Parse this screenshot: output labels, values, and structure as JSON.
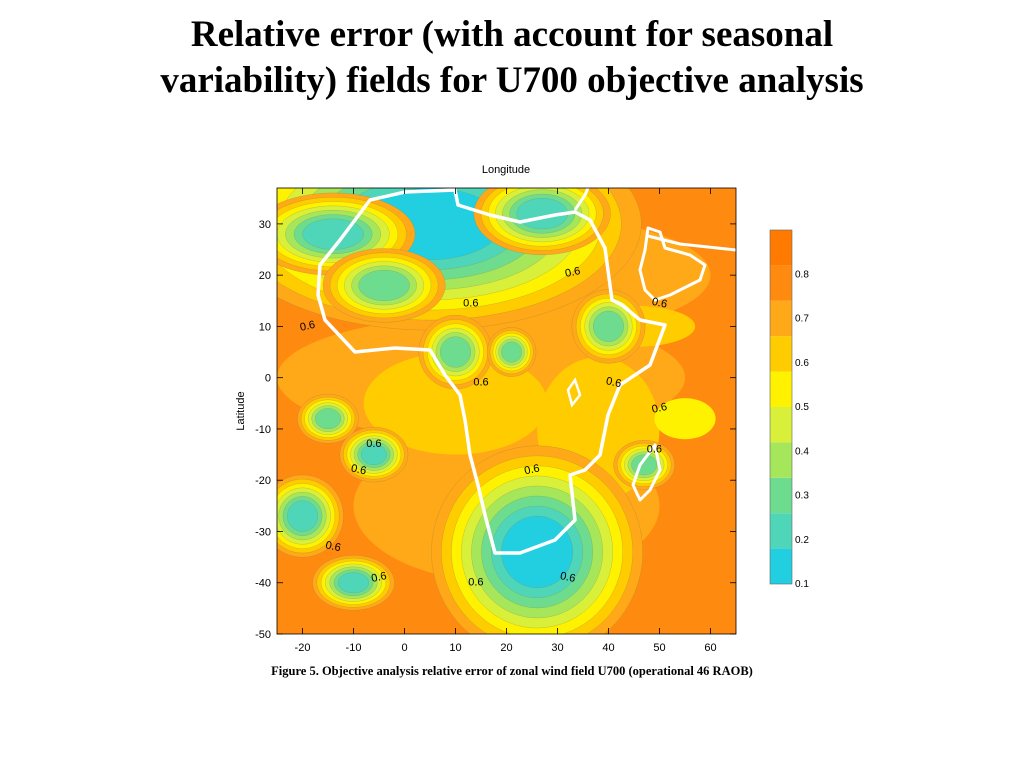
{
  "slide": {
    "title_line1": "Relative error (with account for seasonal",
    "title_line2": "variability) fields for U700 objective analysis",
    "caption": "Figure 5. Objective analysis relative error of zonal wind field U700 (operational 46 RAOB)"
  },
  "chart_data": {
    "type": "heatmap",
    "title": "",
    "xlabel": "Longitude",
    "ylabel": "Latitude",
    "xlim": [
      -25,
      65
    ],
    "ylim": [
      -50,
      37
    ],
    "xticks": [
      -20,
      -10,
      0,
      10,
      20,
      30,
      40,
      50,
      60
    ],
    "yticks": [
      30,
      20,
      10,
      0,
      -10,
      -20,
      -30,
      -40,
      -50
    ],
    "colorbar": {
      "levels": [
        0.1,
        0.2,
        0.3,
        0.4,
        0.5,
        0.6,
        0.7,
        0.8
      ],
      "labels": [
        "0.1",
        "0.2",
        "0.3",
        "0.4",
        "0.5",
        "0.6",
        "0.7",
        "0.8"
      ],
      "colors": [
        "#22cfe0",
        "#4fd6b8",
        "#6ddc8e",
        "#a6e65a",
        "#d9f03a",
        "#fff200",
        "#ffcc00",
        "#ffa818",
        "#ff8a10",
        "#ff7a00"
      ]
    },
    "contour_labels": [
      {
        "text": "0.6",
        "lon": 33,
        "lat": 20.5
      },
      {
        "text": "0.6",
        "lon": 13,
        "lat": 14.5
      },
      {
        "text": "0.6",
        "lon": 50,
        "lat": 14.5
      },
      {
        "text": "0.6",
        "lon": -19,
        "lat": 10
      },
      {
        "text": "0.6",
        "lon": 15,
        "lat": -1
      },
      {
        "text": "0.6",
        "lon": 41,
        "lat": -1
      },
      {
        "text": "0.6",
        "lon": 50,
        "lat": -6
      },
      {
        "text": "0.6",
        "lon": -6,
        "lat": -13
      },
      {
        "text": "0.6",
        "lon": -9,
        "lat": -18
      },
      {
        "text": "0.6",
        "lon": 25,
        "lat": -18
      },
      {
        "text": "0.6",
        "lon": 49,
        "lat": -14
      },
      {
        "text": "0.6",
        "lon": -14,
        "lat": -33
      },
      {
        "text": "0.6",
        "lon": -5,
        "lat": -39
      },
      {
        "text": "0.6",
        "lon": 14,
        "lat": -40
      },
      {
        "text": "0.6",
        "lon": 32,
        "lat": -39
      }
    ],
    "minima_regions": [
      {
        "lon": 5,
        "lat": 30,
        "rx": 14,
        "ry": 7,
        "value": 0.1
      },
      {
        "lon": 26,
        "lat": -34,
        "rx": 7,
        "ry": 7,
        "value": 0.1
      },
      {
        "lon": -20,
        "lat": -27,
        "rx": 3,
        "ry": 3,
        "value": 0.15
      },
      {
        "lon": -10,
        "lat": -40,
        "rx": 3,
        "ry": 2,
        "value": 0.15
      },
      {
        "lon": -6,
        "lat": -15,
        "rx": 2.5,
        "ry": 2,
        "value": 0.2
      },
      {
        "lon": -15,
        "lat": -8,
        "rx": 2.5,
        "ry": 2,
        "value": 0.3
      },
      {
        "lon": 47,
        "lat": -17,
        "rx": 2.5,
        "ry": 2,
        "value": 0.3
      },
      {
        "lon": 40,
        "lat": 10,
        "rx": 3,
        "ry": 3,
        "value": 0.3
      },
      {
        "lon": 10,
        "lat": 5,
        "rx": 3,
        "ry": 3,
        "value": 0.3
      },
      {
        "lon": 21,
        "lat": 5,
        "rx": 2,
        "ry": 2,
        "value": 0.3
      },
      {
        "lon": -14,
        "lat": 28,
        "rx": 6,
        "ry": 3,
        "value": 0.2
      },
      {
        "lon": -4,
        "lat": 18,
        "rx": 5,
        "ry": 3,
        "value": 0.3
      },
      {
        "lon": 27,
        "lat": 32,
        "rx": 5,
        "ry": 3,
        "value": 0.2
      }
    ]
  }
}
